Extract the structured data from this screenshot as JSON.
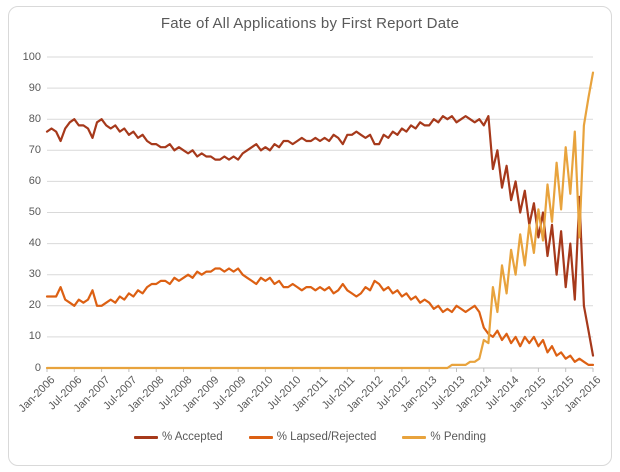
{
  "chart_data": {
    "type": "line",
    "title": "Fate of All Applications by First Report Date",
    "xlabel": "",
    "ylabel": "",
    "ylim": [
      0,
      100
    ],
    "y_ticks": [
      0,
      10,
      20,
      30,
      40,
      50,
      60,
      70,
      80,
      90,
      100
    ],
    "grid": "horizontal",
    "legend_position": "bottom",
    "x_unit": "monthly from Jan-2006 to Jan-2016",
    "x_tick_labels": [
      "Jan-2006",
      "Jul-2006",
      "Jan-2007",
      "Jul-2007",
      "Jan-2008",
      "Jul-2008",
      "Jan-2009",
      "Jul-2009",
      "Jan-2010",
      "Jul-2010",
      "Jan-2011",
      "Jul-2011",
      "Jan-2012",
      "Jul-2012",
      "Jan-2013",
      "Jul-2013",
      "Jan-2014",
      "Jul-2014",
      "Jan-2015",
      "Jul-2015",
      "Jan-2016"
    ],
    "x_ticks_every_n_points": 6,
    "series": [
      {
        "name": "% Accepted",
        "color": "#A6391B",
        "values": [
          76,
          77,
          76,
          73,
          77,
          79,
          80,
          78,
          78,
          77,
          74,
          79,
          80,
          78,
          77,
          78,
          76,
          77,
          75,
          76,
          74,
          75,
          73,
          72,
          72,
          71,
          71,
          72,
          70,
          71,
          70,
          69,
          70,
          68,
          69,
          68,
          68,
          67,
          67,
          68,
          67,
          68,
          67,
          69,
          70,
          71,
          72,
          70,
          71,
          70,
          72,
          71,
          73,
          73,
          72,
          73,
          74,
          73,
          73,
          74,
          73,
          74,
          73,
          75,
          74,
          72,
          75,
          75,
          76,
          75,
          74,
          75,
          72,
          72,
          75,
          74,
          76,
          75,
          77,
          76,
          78,
          77,
          79,
          78,
          78,
          80,
          79,
          81,
          80,
          81,
          79,
          80,
          81,
          80,
          79,
          80,
          78,
          81,
          64,
          70,
          58,
          65,
          54,
          60,
          50,
          57,
          46,
          53,
          42,
          50,
          36,
          46,
          30,
          44,
          26,
          40,
          22,
          55,
          20,
          12,
          4
        ]
      },
      {
        "name": "% Lapsed/Rejected",
        "color": "#DC6013",
        "values": [
          23,
          23,
          23,
          26,
          22,
          21,
          20,
          22,
          21,
          22,
          25,
          20,
          20,
          21,
          22,
          21,
          23,
          22,
          24,
          23,
          25,
          24,
          26,
          27,
          27,
          28,
          28,
          27,
          29,
          28,
          29,
          30,
          29,
          31,
          30,
          31,
          31,
          32,
          32,
          31,
          32,
          31,
          32,
          30,
          29,
          28,
          27,
          29,
          28,
          29,
          27,
          28,
          26,
          26,
          27,
          26,
          25,
          26,
          26,
          25,
          26,
          25,
          26,
          24,
          25,
          27,
          25,
          24,
          23,
          24,
          26,
          25,
          28,
          27,
          25,
          26,
          24,
          25,
          23,
          24,
          22,
          23,
          21,
          22,
          21,
          19,
          20,
          18,
          19,
          18,
          20,
          19,
          18,
          19,
          20,
          18,
          13,
          11,
          10,
          12,
          9,
          11,
          8,
          10,
          7,
          10,
          8,
          10,
          7,
          9,
          5,
          7,
          4,
          5,
          3,
          4,
          2,
          3,
          2,
          1,
          1
        ]
      },
      {
        "name": "% Pending",
        "color": "#E8A33D",
        "values": [
          0,
          0,
          0,
          0,
          0,
          0,
          0,
          0,
          0,
          0,
          0,
          0,
          0,
          0,
          0,
          0,
          0,
          0,
          0,
          0,
          0,
          0,
          0,
          0,
          0,
          0,
          0,
          0,
          0,
          0,
          0,
          0,
          0,
          0,
          0,
          0,
          0,
          0,
          0,
          0,
          0,
          0,
          0,
          0,
          0,
          0,
          0,
          0,
          0,
          0,
          0,
          0,
          0,
          0,
          0,
          0,
          0,
          0,
          0,
          0,
          0,
          0,
          0,
          0,
          0,
          0,
          0,
          0,
          0,
          0,
          0,
          0,
          0,
          0,
          0,
          0,
          0,
          0,
          0,
          0,
          0,
          0,
          0,
          0,
          0,
          0,
          0,
          0,
          0,
          1,
          1,
          1,
          1,
          2,
          2,
          3,
          9,
          8,
          26,
          18,
          33,
          24,
          38,
          30,
          43,
          33,
          46,
          37,
          51,
          41,
          59,
          47,
          66,
          51,
          71,
          56,
          76,
          42,
          78,
          87,
          95
        ]
      }
    ]
  },
  "colors": {
    "text": "#595959",
    "gridline": "#D9D9D9",
    "axis": "#BFBFBF",
    "frame_border": "#D9D9D9",
    "background": "#FFFFFF"
  }
}
